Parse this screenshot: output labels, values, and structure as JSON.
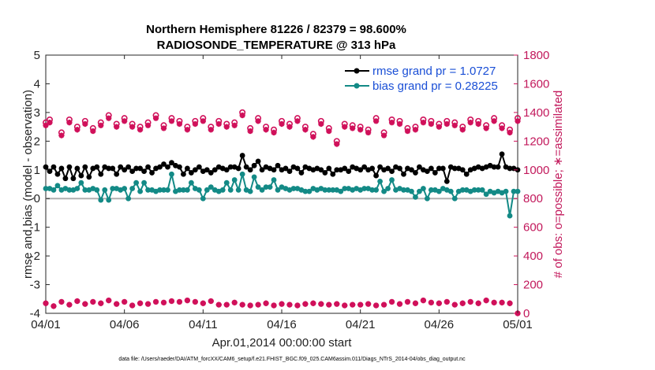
{
  "chart_data": {
    "type": "line",
    "title_line1": "Northern Hemisphere 81226 / 82379 = 98.600%",
    "title_line2": "RADIOSONDE_TEMPERATURE @ 313 hPa",
    "xlabel": "Apr.01,2014 00:00:00 start",
    "ylabel_left": "rmse and bias (model - observation)",
    "ylabel_right": "# of obs: o=possible; ∗=assimilated",
    "footer": "data file: /Users/raeder/DAI/ATM_forcXX/CAM6_setup/f.e21.FHIST_BGC.f09_025.CAM6assim.011/Diags_NTrS_2014-04/obs_diag_output.nc",
    "x_range": [
      0,
      30
    ],
    "x_ticks": [
      0,
      5,
      10,
      15,
      20,
      25,
      30
    ],
    "x_tick_labels": [
      "04/01",
      "04/06",
      "04/11",
      "04/16",
      "04/21",
      "04/26",
      "05/01"
    ],
    "y_left_range": [
      -4,
      5
    ],
    "y_left_ticks": [
      -4,
      -3,
      -2,
      -1,
      0,
      1,
      2,
      3,
      4,
      5
    ],
    "y_left_tick_labels": [
      "-4",
      "-3",
      "-2",
      "-1",
      "0",
      "1",
      "2",
      "3",
      "4",
      "5"
    ],
    "y_right_range": [
      0,
      1800
    ],
    "y_right_ticks": [
      0,
      200,
      400,
      600,
      800,
      1000,
      1200,
      1400,
      1600,
      1800
    ],
    "y_right_tick_labels": [
      "0",
      "200",
      "400",
      "600",
      "800",
      "1000",
      "1200",
      "1400",
      "1600",
      "1800"
    ],
    "legend": [
      {
        "name": "rmse grand pr = 1.0727",
        "color": "#000000"
      },
      {
        "name": "bias grand pr = 0.28225",
        "color": "#138a86"
      }
    ],
    "colors": {
      "rmse": "#000000",
      "bias": "#138a86",
      "obs": "#d0105a",
      "zero_line": "#b0b0b0"
    },
    "rmse_x": [
      0,
      0.25,
      0.5,
      0.75,
      1,
      1.25,
      1.5,
      1.75,
      2,
      2.25,
      2.5,
      2.75,
      3,
      3.25,
      3.5,
      3.75,
      4,
      4.25,
      4.5,
      4.75,
      5,
      5.25,
      5.5,
      5.75,
      6,
      6.25,
      6.5,
      6.75,
      7,
      7.25,
      7.5,
      7.75,
      8,
      8.25,
      8.5,
      8.75,
      9,
      9.25,
      9.5,
      9.75,
      10,
      10.25,
      10.5,
      10.75,
      11,
      11.25,
      11.5,
      11.75,
      12,
      12.25,
      12.5,
      12.75,
      13,
      13.25,
      13.5,
      13.75,
      14,
      14.25,
      14.5,
      14.75,
      15,
      15.25,
      15.5,
      15.75,
      16,
      16.25,
      16.5,
      16.75,
      17,
      17.25,
      17.5,
      17.75,
      18,
      18.25,
      18.5,
      18.75,
      19,
      19.25,
      19.5,
      19.75,
      20,
      20.25,
      20.5,
      20.75,
      21,
      21.25,
      21.5,
      21.75,
      22,
      22.25,
      22.5,
      22.75,
      23,
      23.25,
      23.5,
      23.75,
      24,
      24.25,
      24.5,
      24.75,
      25,
      25.25,
      25.5,
      25.75,
      26,
      26.25,
      26.5,
      26.75,
      27,
      27.25,
      27.5,
      27.75,
      28,
      28.25,
      28.5,
      28.75,
      29,
      29.25,
      29.5,
      29.75,
      30
    ],
    "rmse": [
      1.1,
      0.95,
      1.1,
      0.85,
      1.05,
      0.7,
      1.1,
      0.7,
      1.05,
      0.8,
      1.1,
      0.75,
      1.05,
      1.1,
      0.85,
      1.1,
      1.05,
      1.05,
      0.85,
      1.1,
      1.0,
      1.1,
      0.95,
      1.05,
      1.05,
      0.95,
      1.1,
      0.9,
      1.05,
      1.1,
      1.2,
      1.1,
      1.25,
      1.15,
      1.1,
      0.85,
      1.05,
      0.9,
      1.0,
      1.1,
      0.95,
      1.0,
      0.9,
      1.0,
      1.1,
      1.05,
      1.0,
      1.1,
      1.1,
      1.05,
      1.5,
      1.1,
      1.0,
      1.15,
      1.3,
      1.0,
      1.1,
      1.05,
      1.0,
      1.15,
      1.0,
      1.05,
      0.95,
      1.1,
      1.05,
      0.9,
      1.1,
      1.05,
      1.0,
      1.05,
      1.0,
      0.9,
      1.05,
      0.85,
      1.0,
      1.0,
      1.05,
      0.95,
      1.1,
      1.05,
      1.0,
      1.1,
      1.0,
      1.05,
      0.8,
      1.1,
      1.0,
      1.05,
      0.95,
      1.1,
      1.05,
      0.85,
      1.05,
      1.0,
      0.9,
      1.1,
      1.0,
      0.95,
      1.05,
      0.9,
      1.05,
      1.05,
      0.6,
      1.1,
      1.05,
      1.05,
      1.0,
      0.85,
      1.0,
      1.05,
      1.1,
      1.05,
      1.1,
      1.15,
      1.1,
      1.1,
      1.55,
      1.1,
      1.05,
      1.05,
      1.0,
      2.0,
      1.05,
      0.95,
      1.05,
      1.0,
      1.1,
      0.95,
      1.05,
      1.05,
      1.05
    ],
    "bias_x": [
      0,
      0.25,
      0.5,
      0.75,
      1,
      1.25,
      1.5,
      1.75,
      2,
      2.25,
      2.5,
      2.75,
      3,
      3.25,
      3.5,
      3.75,
      4,
      4.25,
      4.5,
      4.75,
      5,
      5.25,
      5.5,
      5.75,
      6,
      6.25,
      6.5,
      6.75,
      7,
      7.25,
      7.5,
      7.75,
      8,
      8.25,
      8.5,
      8.75,
      9,
      9.25,
      9.5,
      9.75,
      10,
      10.25,
      10.5,
      10.75,
      11,
      11.25,
      11.5,
      11.75,
      12,
      12.25,
      12.5,
      12.75,
      13,
      13.25,
      13.5,
      13.75,
      14,
      14.25,
      14.5,
      14.75,
      15,
      15.25,
      15.5,
      15.75,
      16,
      16.25,
      16.5,
      16.75,
      17,
      17.25,
      17.5,
      17.75,
      18,
      18.25,
      18.5,
      18.75,
      19,
      19.25,
      19.5,
      19.75,
      20,
      20.25,
      20.5,
      20.75,
      21,
      21.25,
      21.5,
      21.75,
      22,
      22.25,
      22.5,
      22.75,
      23,
      23.25,
      23.5,
      23.75,
      24,
      24.25,
      24.5,
      24.75,
      25,
      25.25,
      25.5,
      25.75,
      26,
      26.25,
      26.5,
      26.75,
      27,
      27.25,
      27.5,
      27.75,
      28,
      28.25,
      28.5,
      28.75,
      29,
      29.25,
      29.5,
      29.75,
      30
    ],
    "bias": [
      0.35,
      0.35,
      0.3,
      0.45,
      0.3,
      0.35,
      0.3,
      0.3,
      0.35,
      0.55,
      0.3,
      0.3,
      0.35,
      0.3,
      -0.05,
      0.3,
      -0.05,
      0.35,
      0.35,
      0.3,
      0.35,
      0.0,
      0.35,
      0.55,
      0.25,
      0.55,
      0.3,
      0.3,
      0.25,
      0.3,
      0.3,
      0.3,
      0.85,
      0.25,
      0.3,
      0.3,
      0.3,
      0.55,
      0.35,
      0.3,
      0.0,
      0.3,
      0.4,
      0.3,
      0.25,
      0.3,
      0.55,
      0.3,
      0.65,
      0.3,
      0.85,
      0.3,
      0.25,
      0.75,
      0.4,
      0.3,
      0.4,
      0.4,
      0.65,
      0.3,
      0.4,
      0.35,
      0.3,
      0.35,
      0.35,
      0.3,
      0.25,
      0.25,
      0.35,
      0.3,
      0.35,
      0.3,
      0.3,
      0.3,
      0.3,
      0.25,
      0.35,
      0.35,
      0.3,
      0.35,
      0.3,
      0.35,
      0.35,
      0.3,
      0.3,
      0.6,
      0.25,
      0.35,
      0.65,
      0.3,
      0.35,
      0.3,
      0.3,
      0.25,
      0.05,
      0.25,
      0.35,
      0.0,
      0.3,
      0.3,
      0.25,
      0.35,
      0.3,
      0.25,
      0.0,
      0.25,
      0.3,
      0.3,
      0.25,
      0.3,
      0.3,
      0.3,
      0.15,
      0.25,
      0.2,
      0.25,
      0.2,
      0.25,
      -0.6,
      0.25,
      0.25,
      0.3,
      0.25,
      -0.9,
      0.3,
      0.25,
      0.35,
      0.3,
      0.3,
      0.45,
      0.4,
      0.5,
      0.55
    ],
    "obs_possible_x": [
      0,
      0.25,
      1,
      1.5,
      2,
      2.5,
      3,
      3.5,
      4,
      4.5,
      5,
      5.5,
      6,
      6.5,
      7,
      7.5,
      8,
      8.5,
      9,
      9.5,
      10,
      10.5,
      11,
      11.5,
      12,
      12.5,
      13,
      13.5,
      14,
      14.5,
      15,
      15.5,
      16,
      16.5,
      17,
      17.5,
      18,
      18.5,
      19,
      19.5,
      20,
      20.5,
      21,
      21.5,
      22,
      22.5,
      23,
      23.5,
      24,
      24.5,
      25,
      25.5,
      26,
      26.5,
      27,
      27.5,
      28,
      28.5,
      29,
      29.5,
      30
    ],
    "obs_possible": [
      1330,
      1350,
      1260,
      1350,
      1300,
      1340,
      1290,
      1330,
      1380,
      1320,
      1360,
      1320,
      1300,
      1330,
      1380,
      1310,
      1360,
      1340,
      1300,
      1340,
      1360,
      1300,
      1340,
      1320,
      1330,
      1400,
      1290,
      1360,
      1300,
      1280,
      1340,
      1320,
      1360,
      1300,
      1250,
      1340,
      1290,
      1200,
      1320,
      1310,
      1300,
      1280,
      1360,
      1260,
      1350,
      1340,
      1290,
      1300,
      1350,
      1340,
      1320,
      1340,
      1330,
      1300,
      1350,
      1340,
      1310,
      1360,
      1310,
      1280,
      1360
    ],
    "obs_assim": [
      1310,
      1330,
      1240,
      1330,
      1280,
      1320,
      1270,
      1310,
      1360,
      1300,
      1340,
      1300,
      1280,
      1310,
      1360,
      1290,
      1340,
      1320,
      1280,
      1320,
      1340,
      1280,
      1320,
      1300,
      1310,
      1380,
      1270,
      1340,
      1280,
      1260,
      1320,
      1300,
      1340,
      1280,
      1230,
      1320,
      1270,
      1180,
      1300,
      1290,
      1280,
      1260,
      1340,
      1240,
      1330,
      1320,
      1270,
      1280,
      1330,
      1320,
      1300,
      1320,
      1310,
      1280,
      1330,
      1320,
      1290,
      1340,
      1290,
      1260,
      1340
    ],
    "obs_low_x": [
      0,
      0.5,
      1,
      1.5,
      2,
      2.5,
      3,
      3.5,
      4,
      4.5,
      5,
      5.5,
      6,
      6.5,
      7,
      7.5,
      8,
      8.5,
      9,
      9.5,
      10,
      10.5,
      11,
      11.5,
      12,
      12.5,
      13,
      13.5,
      14,
      14.5,
      15,
      15.5,
      16,
      16.5,
      17,
      17.5,
      18,
      18.5,
      19,
      19.5,
      20,
      20.5,
      21,
      21.5,
      22,
      22.5,
      23,
      23.5,
      24,
      24.5,
      25,
      25.5,
      26,
      26.5,
      27,
      27.5,
      28,
      28.5,
      29,
      29.5,
      30
    ],
    "obs_low": [
      70,
      50,
      80,
      60,
      85,
      65,
      80,
      70,
      90,
      65,
      80,
      55,
      70,
      65,
      80,
      75,
      85,
      80,
      90,
      80,
      70,
      85,
      60,
      60,
      75,
      60,
      55,
      60,
      70,
      55,
      65,
      60,
      55,
      65,
      70,
      65,
      60,
      65,
      55,
      60,
      60,
      65,
      55,
      60,
      80,
      65,
      80,
      70,
      90,
      75,
      70,
      80,
      60,
      70,
      80,
      70,
      90,
      75,
      75,
      70,
      0
    ]
  }
}
